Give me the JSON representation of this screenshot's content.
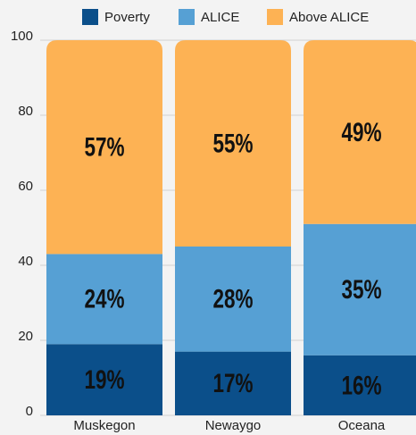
{
  "chart_data": {
    "type": "stacked_bar",
    "categories": [
      "Muskegon",
      "Newaygo",
      "Oceana"
    ],
    "series": [
      {
        "name": "Poverty",
        "color": "#0b4f8a",
        "values": [
          19,
          17,
          16
        ],
        "value_labels": [
          "19%",
          "17%",
          "16%"
        ]
      },
      {
        "name": "ALICE",
        "color": "#56a0d4",
        "values": [
          24,
          28,
          35
        ],
        "value_labels": [
          "24%",
          "28%",
          "35%"
        ]
      },
      {
        "name": "Above ALICE",
        "color": "#fdb254",
        "values": [
          57,
          55,
          49
        ],
        "value_labels": [
          "57%",
          "55%",
          "49%"
        ]
      }
    ],
    "ylim": [
      0,
      100
    ],
    "yticks": [
      0,
      20,
      40,
      60,
      80,
      100
    ],
    "grid": true,
    "legend": "top"
  }
}
